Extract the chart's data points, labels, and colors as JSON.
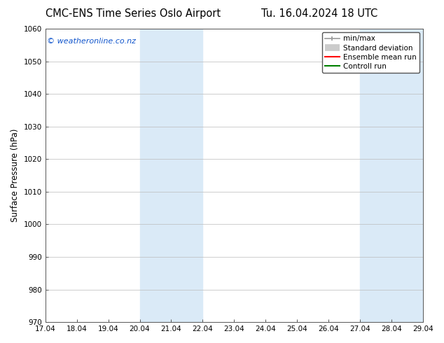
{
  "title_left": "CMC-ENS Time Series Oslo Airport",
  "title_right": "Tu. 16.04.2024 18 UTC",
  "ylabel": "Surface Pressure (hPa)",
  "ylim": [
    970,
    1060
  ],
  "yticks": [
    970,
    980,
    990,
    1000,
    1010,
    1020,
    1030,
    1040,
    1050,
    1060
  ],
  "xtick_labels": [
    "17.04",
    "18.04",
    "19.04",
    "20.04",
    "21.04",
    "22.04",
    "23.04",
    "24.04",
    "25.04",
    "26.04",
    "27.04",
    "28.04",
    "29.04"
  ],
  "xtick_positions": [
    0,
    1,
    2,
    3,
    4,
    5,
    6,
    7,
    8,
    9,
    10,
    11,
    12
  ],
  "shaded_regions": [
    {
      "x_start": 3,
      "x_end": 5,
      "color": "#daeaf7"
    },
    {
      "x_start": 10,
      "x_end": 12,
      "color": "#daeaf7"
    }
  ],
  "watermark_text": "© weatheronline.co.nz",
  "watermark_color": "#1155cc",
  "legend_labels": [
    "min/max",
    "Standard deviation",
    "Ensemble mean run",
    "Controll run"
  ],
  "legend_colors": [
    "#aaaaaa",
    "#cccccc",
    "red",
    "green"
  ],
  "bg_color": "#ffffff",
  "plot_bg_color": "#ffffff",
  "grid_color": "#bbbbbb",
  "title_fontsize": 10.5,
  "tick_label_fontsize": 7.5,
  "ylabel_fontsize": 8.5,
  "legend_fontsize": 7.5,
  "watermark_fontsize": 8
}
